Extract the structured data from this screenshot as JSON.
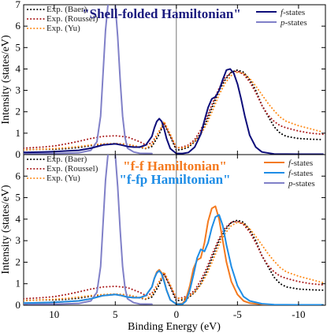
{
  "chart_data": [
    {
      "type": "line",
      "title": "\"Shell-folded Hamiltonian\"",
      "title_color": "#1a1a7e",
      "xlabel": "",
      "ylabel": "Intensity (states/eV)",
      "xlim": [
        12.5,
        -12.2
      ],
      "ylim": [
        0,
        7
      ],
      "x_inverted": true,
      "xticks": [
        10,
        5,
        0,
        -5,
        -10
      ],
      "yticks": [
        0,
        1,
        2,
        3,
        4,
        5,
        6,
        7
      ],
      "vline": 0,
      "legend_left": [
        {
          "label": "Exp. (Baer)",
          "color": "#000000",
          "style": "dotted"
        },
        {
          "label": "Exp. (Roussel)",
          "color": "#aa1a1a",
          "style": "dotted"
        },
        {
          "label": "Exp. (Yu)",
          "color": "#ff8c1a",
          "style": "dotted"
        }
      ],
      "legend_right": [
        {
          "label_italic": "f",
          "label_rest": "-states",
          "color": "#0d0d7a",
          "style": "solid"
        },
        {
          "label_italic": "p",
          "label_rest": "-states",
          "color": "#8080c8",
          "style": "solid"
        }
      ],
      "series": [
        {
          "key": "baer",
          "color": "#000000",
          "style": "dotted",
          "x": [
            12.5,
            11,
            10,
            9,
            8,
            7,
            6,
            5,
            4,
            3,
            2.5,
            2,
            1.5,
            1,
            0.5,
            0,
            -0.5,
            -1,
            -1.5,
            -2,
            -2.5,
            -3,
            -3.5,
            -4,
            -4.5,
            -5,
            -5.5,
            -6,
            -6.5,
            -7,
            -7.5,
            -8,
            -8.5,
            -9,
            -10,
            -11,
            -12
          ],
          "y": [
            0.22,
            0.25,
            0.25,
            0.28,
            0.33,
            0.42,
            0.48,
            0.52,
            0.48,
            0.34,
            0.28,
            0.38,
            0.85,
            1.45,
            0.85,
            0.2,
            0.25,
            0.35,
            0.6,
            1.0,
            1.6,
            2.3,
            3.0,
            3.5,
            3.85,
            3.95,
            3.85,
            3.5,
            3.0,
            2.3,
            1.8,
            1.3,
            1.0,
            0.85,
            0.75,
            0.72,
            0.7
          ]
        },
        {
          "key": "roussel",
          "color": "#aa1a1a",
          "style": "dotted",
          "x": [
            12.5,
            11,
            10,
            9,
            8,
            7,
            6,
            5,
            4,
            3,
            2.5,
            2,
            1.5,
            1,
            0.5,
            0,
            -0.5,
            -1,
            -1.5,
            -2,
            -2.5,
            -3,
            -3.5,
            -4,
            -4.5,
            -5,
            -5.5,
            -6,
            -6.5,
            -7,
            -7.5,
            -8,
            -8.5,
            -9,
            -10,
            -11,
            -12
          ],
          "y": [
            0.3,
            0.35,
            0.4,
            0.5,
            0.62,
            0.75,
            0.85,
            0.88,
            0.82,
            0.6,
            0.45,
            0.55,
            1.0,
            1.45,
            0.9,
            0.3,
            0.35,
            0.45,
            0.7,
            1.15,
            1.75,
            2.45,
            3.1,
            3.6,
            3.85,
            3.9,
            3.75,
            3.4,
            2.9,
            2.3,
            1.85,
            1.55,
            1.35,
            1.25,
            1.1,
            1.0,
            0.95
          ]
        },
        {
          "key": "yu",
          "color": "#ff8c1a",
          "style": "dotted",
          "x": [
            12.5,
            11,
            10,
            9,
            8,
            7,
            6,
            5,
            4,
            3,
            2.5,
            2,
            1.5,
            1,
            0.5,
            0,
            -0.5,
            -1,
            -1.5,
            -2,
            -2.5,
            -3,
            -3.5,
            -4,
            -4.5,
            -5,
            -5.5,
            -6,
            -6.5,
            -7,
            -7.5,
            -8,
            -8.5,
            -9,
            -10,
            -11,
            -12
          ],
          "y": [
            0.22,
            0.25,
            0.28,
            0.32,
            0.38,
            0.45,
            0.5,
            0.52,
            0.48,
            0.36,
            0.3,
            0.45,
            1.0,
            1.55,
            0.95,
            0.35,
            0.3,
            0.4,
            0.6,
            0.95,
            1.45,
            2.1,
            2.8,
            3.35,
            3.7,
            3.85,
            3.8,
            3.55,
            3.2,
            2.8,
            2.4,
            2.05,
            1.75,
            1.55,
            1.35,
            1.2,
            1.05
          ]
        },
        {
          "key": "p",
          "color": "#8080c8",
          "style": "solid",
          "x": [
            12.5,
            10,
            8,
            7,
            6.5,
            6.2,
            6.0,
            5.8,
            5.6,
            5.4,
            5.2,
            5.0,
            4.8,
            4.6,
            4.4,
            4.2,
            4.0,
            3.5,
            3,
            2
          ],
          "y": [
            0.05,
            0.05,
            0.08,
            0.2,
            0.6,
            1.8,
            3.8,
            5.8,
            7.0,
            7.3,
            7.3,
            7.0,
            5.5,
            3.5,
            1.8,
            0.8,
            0.3,
            0.12,
            0.06,
            0.05
          ]
        },
        {
          "key": "f",
          "color": "#0d0d7a",
          "style": "solid",
          "x": [
            12.5,
            11,
            10,
            9,
            8,
            7,
            6,
            5,
            4.5,
            4,
            3.5,
            3,
            2.5,
            2,
            1.8,
            1.6,
            1.4,
            1.2,
            1.0,
            0.8,
            0.5,
            0,
            -0.5,
            -1,
            -1.5,
            -2,
            -2.3,
            -2.6,
            -2.9,
            -3.2,
            -3.5,
            -3.8,
            -4.1,
            -4.4,
            -4.7,
            -5.0,
            -5.3,
            -5.6,
            -6,
            -6.5,
            -7,
            -8,
            -10,
            -12
          ],
          "y": [
            0.1,
            0.12,
            0.14,
            0.17,
            0.2,
            0.3,
            0.45,
            0.5,
            0.45,
            0.38,
            0.35,
            0.35,
            0.45,
            0.85,
            1.25,
            1.55,
            1.68,
            1.55,
            1.2,
            0.75,
            0.28,
            0.05,
            0.05,
            0.1,
            0.35,
            0.95,
            1.6,
            2.2,
            2.6,
            2.7,
            3.0,
            3.5,
            3.95,
            4.0,
            3.8,
            3.3,
            2.6,
            1.8,
            0.9,
            0.35,
            0.12,
            0.03,
            0.02,
            0.02
          ]
        }
      ]
    },
    {
      "type": "line",
      "title": "\"f-f Hamiltonian\"",
      "title_color": "#f47a1f",
      "subtitle": "\"f-fp Hamiltonian\"",
      "subtitle_color": "#1e8de6",
      "xlabel": "Binding Energy (eV)",
      "ylabel": "Intensity (states/eV)",
      "xlim": [
        12.5,
        -12.2
      ],
      "ylim": [
        0,
        7
      ],
      "x_inverted": true,
      "xticks": [
        10,
        5,
        0,
        -5,
        -10
      ],
      "yticks": [
        0,
        1,
        2,
        3,
        4,
        5,
        6,
        7
      ],
      "vline": 0,
      "legend_left": [
        {
          "label": "Exp. (Baer)",
          "color": "#000000",
          "style": "dotted"
        },
        {
          "label": "Exp. (Roussel)",
          "color": "#aa1a1a",
          "style": "dotted"
        },
        {
          "label": "Exp. (Yu)",
          "color": "#ff8c1a",
          "style": "dotted"
        }
      ],
      "legend_right": [
        {
          "label_italic": "f",
          "label_rest": "-states",
          "color": "#f47a1f",
          "style": "solid"
        },
        {
          "label_italic": "f",
          "label_rest": "-states",
          "color": "#1e8de6",
          "style": "solid"
        },
        {
          "label_italic": "p",
          "label_rest": "-states",
          "color": "#8080c8",
          "style": "solid"
        }
      ],
      "series": [
        {
          "key": "baer",
          "color": "#000000",
          "style": "dotted",
          "x": [
            12.5,
            11,
            10,
            9,
            8,
            7,
            6,
            5,
            4,
            3,
            2.5,
            2,
            1.5,
            1,
            0.5,
            0,
            -0.5,
            -1,
            -1.5,
            -2,
            -2.5,
            -3,
            -3.5,
            -4,
            -4.5,
            -5,
            -5.5,
            -6,
            -6.5,
            -7,
            -7.5,
            -8,
            -8.5,
            -9,
            -10,
            -11,
            -12
          ],
          "y": [
            0.22,
            0.25,
            0.25,
            0.28,
            0.33,
            0.42,
            0.48,
            0.52,
            0.48,
            0.34,
            0.28,
            0.38,
            0.85,
            1.45,
            0.85,
            0.2,
            0.25,
            0.35,
            0.6,
            1.0,
            1.6,
            2.3,
            3.0,
            3.5,
            3.85,
            3.95,
            3.85,
            3.5,
            3.0,
            2.3,
            1.8,
            1.3,
            1.0,
            0.85,
            0.75,
            0.72,
            0.7
          ]
        },
        {
          "key": "roussel",
          "color": "#aa1a1a",
          "style": "dotted",
          "x": [
            12.5,
            11,
            10,
            9,
            8,
            7,
            6,
            5,
            4,
            3,
            2.5,
            2,
            1.5,
            1,
            0.5,
            0,
            -0.5,
            -1,
            -1.5,
            -2,
            -2.5,
            -3,
            -3.5,
            -4,
            -4.5,
            -5,
            -5.5,
            -6,
            -6.5,
            -7,
            -7.5,
            -8,
            -8.5,
            -9,
            -10,
            -11,
            -12
          ],
          "y": [
            0.3,
            0.35,
            0.4,
            0.5,
            0.62,
            0.75,
            0.85,
            0.88,
            0.82,
            0.6,
            0.45,
            0.55,
            1.0,
            1.45,
            0.9,
            0.3,
            0.35,
            0.45,
            0.7,
            1.15,
            1.75,
            2.45,
            3.1,
            3.6,
            3.85,
            3.9,
            3.75,
            3.4,
            2.9,
            2.3,
            1.85,
            1.55,
            1.35,
            1.25,
            1.1,
            1.0,
            0.95
          ]
        },
        {
          "key": "yu",
          "color": "#ff8c1a",
          "style": "dotted",
          "x": [
            12.5,
            11,
            10,
            9,
            8,
            7,
            6,
            5,
            4,
            3,
            2.5,
            2,
            1.5,
            1,
            0.5,
            0,
            -0.5,
            -1,
            -1.5,
            -2,
            -2.5,
            -3,
            -3.5,
            -4,
            -4.5,
            -5,
            -5.5,
            -6,
            -6.5,
            -7,
            -7.5,
            -8,
            -8.5,
            -9,
            -10,
            -11,
            -12
          ],
          "y": [
            0.22,
            0.25,
            0.28,
            0.32,
            0.38,
            0.45,
            0.5,
            0.52,
            0.48,
            0.36,
            0.3,
            0.45,
            1.0,
            1.55,
            0.95,
            0.35,
            0.3,
            0.4,
            0.6,
            0.95,
            1.45,
            2.1,
            2.8,
            3.35,
            3.7,
            3.85,
            3.8,
            3.55,
            3.2,
            2.8,
            2.4,
            2.05,
            1.75,
            1.55,
            1.35,
            1.2,
            1.05
          ]
        },
        {
          "key": "p",
          "color": "#8080c8",
          "style": "solid",
          "x": [
            12.5,
            10,
            8,
            7,
            6.5,
            6.2,
            6.0,
            5.8,
            5.6,
            5.4,
            5.2,
            5.0,
            4.8,
            4.6,
            4.4,
            4.2,
            4.0,
            3.5,
            3,
            2
          ],
          "y": [
            0.05,
            0.05,
            0.08,
            0.2,
            0.6,
            1.8,
            3.8,
            5.8,
            7.0,
            7.3,
            7.3,
            7.0,
            5.5,
            3.5,
            1.8,
            0.8,
            0.3,
            0.12,
            0.06,
            0.05
          ]
        },
        {
          "key": "ff",
          "color": "#f47a1f",
          "style": "solid",
          "x": [
            12.5,
            11,
            10,
            9,
            8,
            7,
            6,
            5,
            4.5,
            4,
            3.5,
            3,
            2.5,
            2,
            1.8,
            1.6,
            1.4,
            1.2,
            1.0,
            0.8,
            0.5,
            0,
            -0.5,
            -0.8,
            -1.1,
            -1.4,
            -1.7,
            -2.0,
            -2.3,
            -2.6,
            -2.9,
            -3.2,
            -3.5,
            -3.8,
            -4.1,
            -4.5,
            -5,
            -5.5,
            -6,
            -7,
            -8,
            -10,
            -12
          ],
          "y": [
            0.1,
            0.12,
            0.14,
            0.17,
            0.2,
            0.3,
            0.45,
            0.5,
            0.45,
            0.38,
            0.35,
            0.35,
            0.45,
            0.85,
            1.25,
            1.55,
            1.65,
            1.5,
            1.15,
            0.7,
            0.25,
            0.05,
            0.08,
            0.3,
            0.9,
            1.7,
            2.1,
            2.2,
            2.9,
            3.9,
            4.5,
            4.6,
            4.0,
            3.0,
            2.0,
            1.1,
            0.5,
            0.2,
            0.1,
            0.04,
            0.02,
            0.02,
            0.02
          ]
        },
        {
          "key": "ffp",
          "color": "#1e8de6",
          "style": "solid",
          "x": [
            12.5,
            11,
            10,
            9,
            8,
            7,
            6,
            5,
            4.5,
            4,
            3.5,
            3,
            2.5,
            2,
            1.8,
            1.6,
            1.4,
            1.2,
            1.0,
            0.8,
            0.5,
            0,
            -0.5,
            -0.8,
            -1.1,
            -1.4,
            -1.7,
            -2.0,
            -2.3,
            -2.6,
            -2.9,
            -3.2,
            -3.5,
            -3.8,
            -4.1,
            -4.5,
            -5,
            -5.5,
            -6,
            -7,
            -8,
            -10,
            -12
          ],
          "y": [
            0.1,
            0.12,
            0.14,
            0.17,
            0.2,
            0.3,
            0.45,
            0.5,
            0.45,
            0.38,
            0.35,
            0.35,
            0.45,
            0.85,
            1.25,
            1.5,
            1.6,
            1.45,
            1.1,
            0.7,
            0.25,
            0.05,
            0.05,
            0.2,
            0.7,
            1.4,
            2.2,
            2.6,
            2.5,
            2.9,
            3.6,
            4.1,
            4.2,
            3.7,
            2.8,
            1.8,
            0.9,
            0.4,
            0.2,
            0.07,
            0.03,
            0.02,
            0.02
          ]
        }
      ]
    }
  ]
}
